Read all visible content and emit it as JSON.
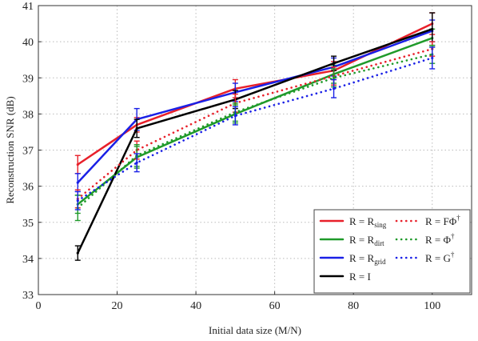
{
  "chart_data": {
    "type": "line",
    "title": "",
    "xlabel": "Initial data size (M/N)",
    "ylabel": "Reconstruction SNR (dB)",
    "xlim": [
      0,
      110
    ],
    "ylim": [
      33,
      41
    ],
    "xticks": [
      0,
      20,
      40,
      60,
      80,
      100
    ],
    "yticks": [
      33,
      34,
      35,
      36,
      37,
      38,
      39,
      40,
      41
    ],
    "grid": true,
    "legend_position": "bottom-right",
    "x": [
      10,
      25,
      50,
      75,
      100
    ],
    "series": [
      {
        "name": "R = Rsing",
        "label_main": "R = R",
        "label_sub": "sing",
        "label_sup": "",
        "color": "#e8202a",
        "style": "solid",
        "legend_col": 0,
        "legend_row": 0,
        "values": [
          36.6,
          37.7,
          38.7,
          39.2,
          40.5
        ],
        "err": [
          0.25,
          0.2,
          0.25,
          0.25,
          0.3
        ]
      },
      {
        "name": "R = Rdirt",
        "label_main": "R = R",
        "label_sub": "dirt",
        "label_sup": "",
        "color": "#1f9a2a",
        "style": "solid",
        "legend_col": 0,
        "legend_row": 1,
        "values": [
          35.5,
          36.8,
          38.0,
          39.1,
          40.1
        ],
        "err": [
          0.25,
          0.3,
          0.25,
          0.25,
          0.25
        ]
      },
      {
        "name": "R = Rgrid",
        "label_main": "R = R",
        "label_sub": "grid",
        "label_sup": "",
        "color": "#1a20e6",
        "style": "solid",
        "legend_col": 0,
        "legend_row": 2,
        "values": [
          36.1,
          37.85,
          38.6,
          39.3,
          40.3
        ],
        "err": [
          0.25,
          0.3,
          0.25,
          0.25,
          0.3
        ]
      },
      {
        "name": "R = I",
        "label_main": "R = I",
        "label_sub": "",
        "label_sup": "",
        "color": "#000000",
        "style": "solid",
        "legend_col": 0,
        "legend_row": 3,
        "values": [
          34.15,
          37.6,
          38.4,
          39.4,
          40.35
        ],
        "err": [
          0.2,
          0.25,
          0.25,
          0.2,
          0.45
        ]
      },
      {
        "name": "R = FΦ†",
        "label_main": "R = FΦ",
        "label_sub": "",
        "label_sup": "†",
        "color": "#e8202a",
        "style": "dotted",
        "legend_col": 1,
        "legend_row": 0,
        "values": [
          35.65,
          37.0,
          38.3,
          39.05,
          39.8
        ],
        "err": [
          0.25,
          0.25,
          0.25,
          0.25,
          0.2
        ]
      },
      {
        "name": "R = Φ†",
        "label_main": "R = Φ",
        "label_sub": "",
        "label_sup": "†",
        "color": "#1f9a2a",
        "style": "dotted",
        "legend_col": 1,
        "legend_row": 1,
        "values": [
          35.4,
          36.85,
          38.05,
          39.0,
          39.65
        ],
        "err": [
          0.35,
          0.3,
          0.25,
          0.25,
          0.25
        ]
      },
      {
        "name": "R = G†",
        "label_main": "R = G",
        "label_sub": "",
        "label_sup": "†",
        "color": "#1a20e6",
        "style": "dotted",
        "legend_col": 1,
        "legend_row": 2,
        "values": [
          35.6,
          36.65,
          37.95,
          38.7,
          39.55
        ],
        "err": [
          0.25,
          0.25,
          0.25,
          0.25,
          0.3
        ]
      }
    ]
  }
}
